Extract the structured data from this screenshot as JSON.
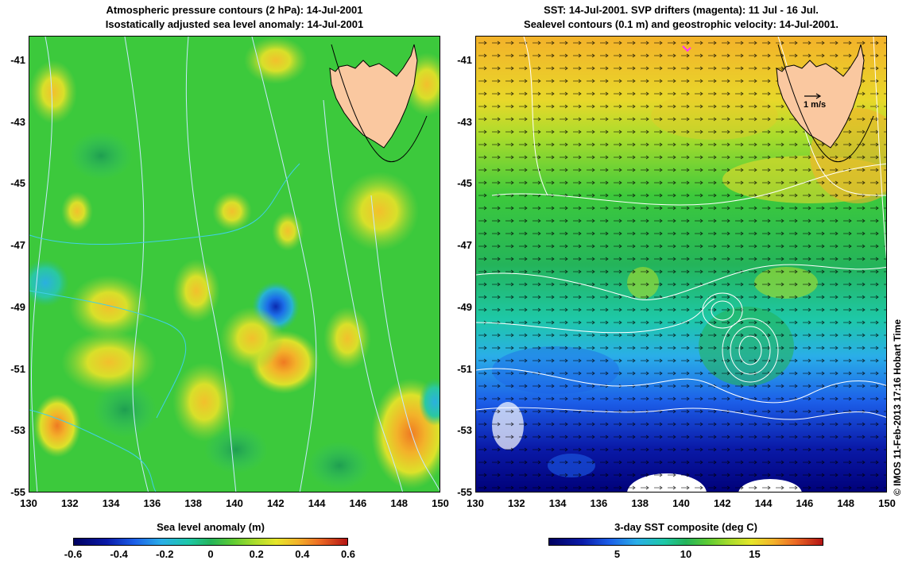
{
  "left": {
    "title_line1": "Atmospheric pressure contours (2 hPa): 14-Jul-2001",
    "title_line2": "Isostatically adjusted sea level anomaly: 14-Jul-2001",
    "colorbar_label": "Sea level anomaly (m)",
    "colorbar_ticks": [
      "-0.6",
      "-0.4",
      "-0.2",
      "0",
      "0.2",
      "0.4",
      "0.6"
    ],
    "colors": {
      "background": "#3cc93c",
      "land": "#fac8a0"
    }
  },
  "right": {
    "title_line1": "SST: 14-Jul-2001. SVP drifters (magenta): 11 Jul - 16 Jul.",
    "title_line2": "Sealevel contours (0.1 m) and geostrophic velocity: 14-Jul-2001.",
    "colorbar_label": "3-day SST composite (deg C)",
    "colorbar_ticks": [
      "5",
      "10",
      "15"
    ],
    "scale_label": "1 m/s",
    "colors": {
      "land": "#fac8a0"
    }
  },
  "axes": {
    "lon_ticks": [
      "130",
      "132",
      "134",
      "136",
      "138",
      "140",
      "142",
      "144",
      "146",
      "148",
      "150"
    ],
    "lat_ticks": [
      "-41",
      "-43",
      "-45",
      "-47",
      "-49",
      "-51",
      "-53",
      "-55"
    ],
    "lon_range": [
      130,
      150
    ],
    "lat_range": [
      -40.2,
      -55
    ]
  },
  "credit": "© IMOS 11-Feb-2013 17:16 Hobart Time"
}
